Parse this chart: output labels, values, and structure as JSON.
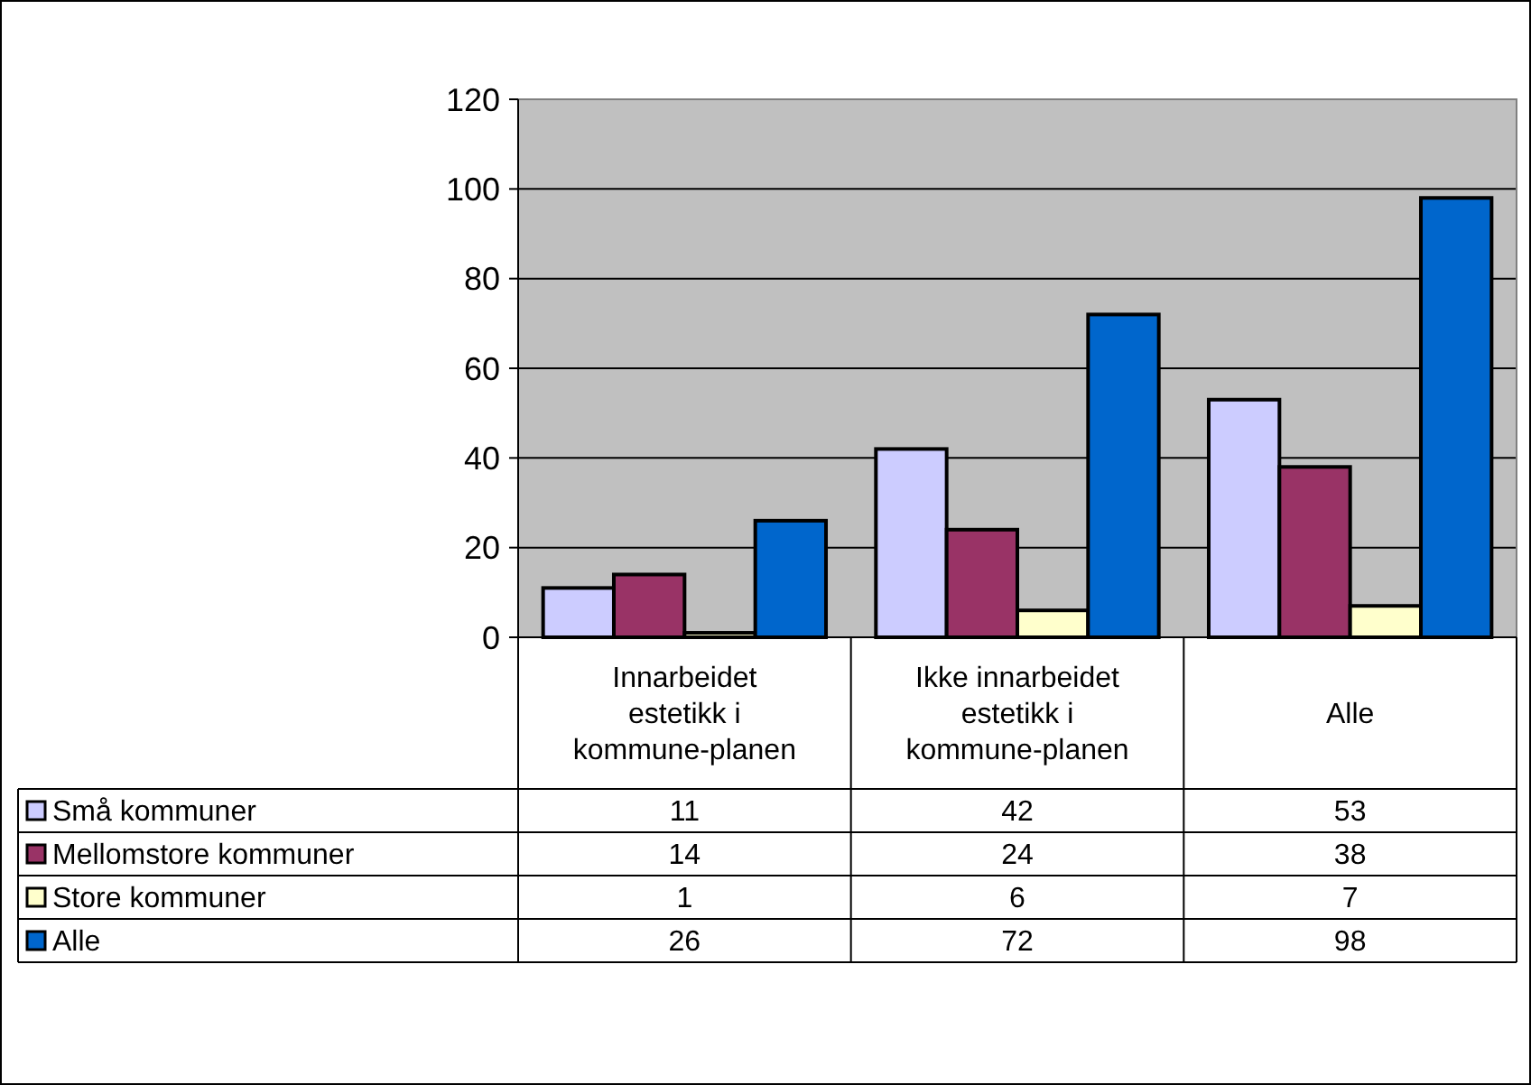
{
  "chart_data": {
    "type": "bar",
    "categories": [
      "Innarbeidet estetikk i kommune-planen",
      "Ikke innarbeidet estetikk i kommune-planen",
      "Alle"
    ],
    "series": [
      {
        "name": "Små kommuner",
        "color": "#ccccff",
        "values": [
          11,
          42,
          53
        ]
      },
      {
        "name": "Mellomstore kommuner",
        "color": "#993366",
        "values": [
          14,
          24,
          38
        ]
      },
      {
        "name": "Store kommuner",
        "color": "#ffffcc",
        "values": [
          1,
          6,
          7
        ]
      },
      {
        "name": "Alle",
        "color": "#0066cc",
        "values": [
          26,
          72,
          98
        ]
      }
    ],
    "ylim": [
      0,
      120
    ],
    "yticks": [
      0,
      20,
      40,
      60,
      80,
      100,
      120
    ],
    "grid": "y",
    "legend": "bottom",
    "data_labels": true
  }
}
